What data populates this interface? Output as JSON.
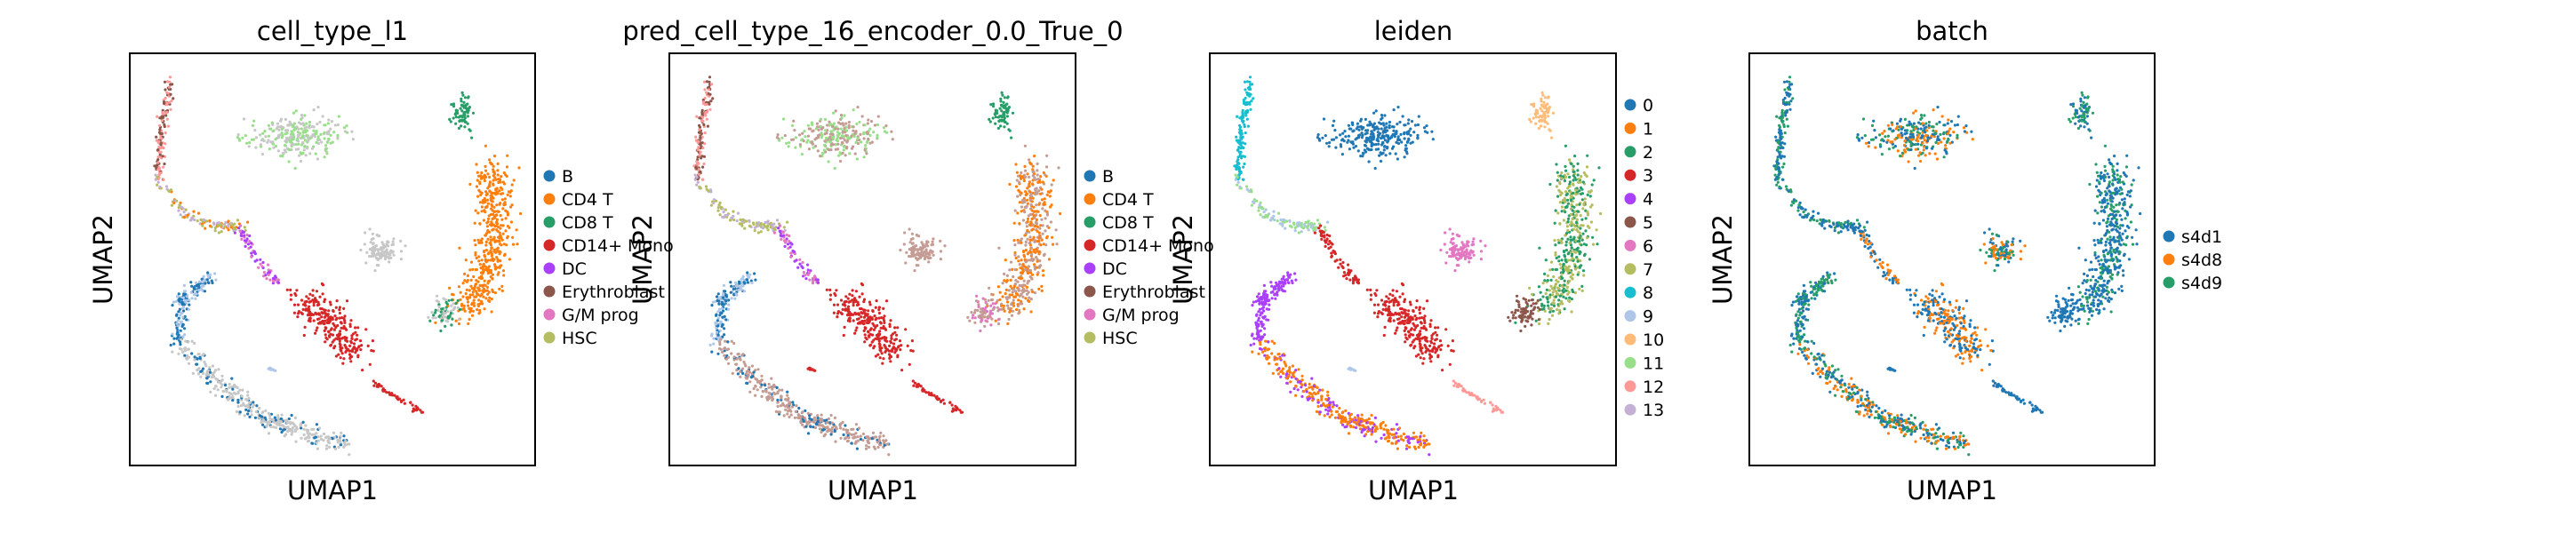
{
  "chart_data": [
    {
      "type": "scatter",
      "title": "cell_type_l1",
      "xlabel": "UMAP1",
      "ylabel": "UMAP2",
      "legend_position": "right",
      "grid": false,
      "legend": [
        {
          "label": "B",
          "color": "#1f77b4"
        },
        {
          "label": "CD4 T",
          "color": "#ff7f0e"
        },
        {
          "label": "CD8 T",
          "color": "#279e68"
        },
        {
          "label": "CD14+ Mono",
          "color": "#d62728"
        },
        {
          "label": "DC",
          "color": "#aa40fc"
        },
        {
          "label": "Erythroblast",
          "color": "#8c564b"
        },
        {
          "label": "G/M prog",
          "color": "#e377c2"
        },
        {
          "label": "HSC",
          "color": "#b5bd61"
        }
      ]
    },
    {
      "type": "scatter",
      "title": "pred_cell_type_16_encoder_0.0_True_0",
      "xlabel": "UMAP1",
      "ylabel": "UMAP2",
      "legend_position": "right",
      "grid": false,
      "legend": [
        {
          "label": "B",
          "color": "#1f77b4"
        },
        {
          "label": "CD4 T",
          "color": "#ff7f0e"
        },
        {
          "label": "CD8 T",
          "color": "#279e68"
        },
        {
          "label": "CD14+ Mono",
          "color": "#d62728"
        },
        {
          "label": "DC",
          "color": "#aa40fc"
        },
        {
          "label": "Erythroblast",
          "color": "#8c564b"
        },
        {
          "label": "G/M prog",
          "color": "#e377c2"
        },
        {
          "label": "HSC",
          "color": "#b5bd61"
        }
      ]
    },
    {
      "type": "scatter",
      "title": "leiden",
      "xlabel": "UMAP1",
      "ylabel": "UMAP2",
      "legend_position": "right",
      "grid": false,
      "legend": [
        {
          "label": "0",
          "color": "#1f77b4"
        },
        {
          "label": "1",
          "color": "#ff7f0e"
        },
        {
          "label": "2",
          "color": "#279e68"
        },
        {
          "label": "3",
          "color": "#d62728"
        },
        {
          "label": "4",
          "color": "#aa40fc"
        },
        {
          "label": "5",
          "color": "#8c564b"
        },
        {
          "label": "6",
          "color": "#e377c2"
        },
        {
          "label": "7",
          "color": "#b5bd61"
        },
        {
          "label": "8",
          "color": "#17becf"
        },
        {
          "label": "9",
          "color": "#aec7e8"
        },
        {
          "label": "10",
          "color": "#ffbb78"
        },
        {
          "label": "11",
          "color": "#98df8a"
        },
        {
          "label": "12",
          "color": "#ff9896"
        },
        {
          "label": "13",
          "color": "#c5b0d5"
        }
      ]
    },
    {
      "type": "scatter",
      "title": "batch",
      "xlabel": "UMAP1",
      "ylabel": "UMAP2",
      "legend_position": "right",
      "grid": false,
      "legend": [
        {
          "label": "s4d1",
          "color": "#1f77b4"
        },
        {
          "label": "s4d8",
          "color": "#ff7f0e"
        },
        {
          "label": "s4d9",
          "color": "#279e68"
        }
      ]
    }
  ]
}
